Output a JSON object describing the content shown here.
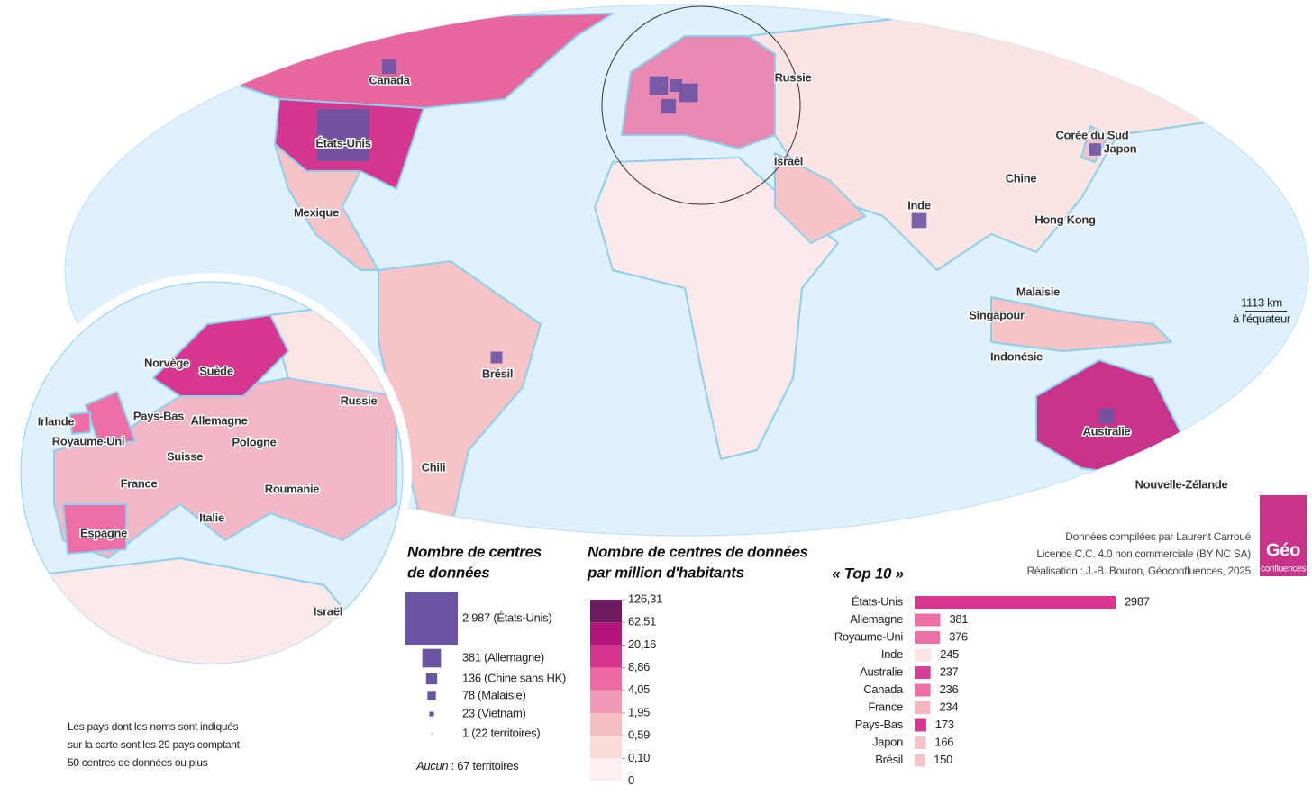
{
  "map": {
    "labels": [
      "Canada",
      "États-Unis",
      "Mexique",
      "Brésil",
      "Chili",
      "Russie",
      "Israël",
      "Inde",
      "Chine",
      "Corée du Sud",
      "Japon",
      "Hong Kong",
      "Malaisie",
      "Singapour",
      "Indonésie",
      "Australie",
      "Nouvelle-Zélande"
    ],
    "scale": {
      "distance": "1113 km",
      "caption": "à l'équateur"
    }
  },
  "inset": {
    "labels": [
      "Norvège",
      "Suède",
      "Irlande",
      "Pays-Bas",
      "Allemagne",
      "Royaume-Uni",
      "Pologne",
      "Suisse",
      "France",
      "Roumanie",
      "Italie",
      "Espagne",
      "Russie",
      "Israël"
    ]
  },
  "legend_size": {
    "title": [
      "Nombre de centres",
      "de données"
    ],
    "color": "#6a55a3",
    "items": [
      {
        "value": 2987,
        "label": "2 987 (États-Unis)"
      },
      {
        "value": 381,
        "label": "381 (Allemagne)"
      },
      {
        "value": 136,
        "label": "136 (Chine sans HK)"
      },
      {
        "value": 78,
        "label": "78 (Malaisie)"
      },
      {
        "value": 23,
        "label": "23 (Vietnam)"
      },
      {
        "value": 1,
        "label": "1 (22 territoires)"
      }
    ],
    "none_label": "Aucun",
    "none_text": " : 67 territoires"
  },
  "legend_density": {
    "title": [
      "Nombre de centres de données",
      "par million d'habitants"
    ],
    "breaks": [
      {
        "value": 126.31,
        "label": "126,31"
      },
      {
        "value": 62.51,
        "label": "62,51"
      },
      {
        "value": 20.16,
        "label": "20,16"
      },
      {
        "value": 8.86,
        "label": "8,86"
      },
      {
        "value": 4.05,
        "label": "4,05"
      },
      {
        "value": 1.95,
        "label": "1,95"
      },
      {
        "value": 0.59,
        "label": "0,59"
      },
      {
        "value": 0.1,
        "label": "0,10"
      },
      0
    ],
    "colors": [
      "#6e1a5e",
      "#b5147c",
      "#d6338e",
      "#ec6aa2",
      "#f19bb9",
      "#f6bcc3",
      "#fbdada",
      "#fdf0f0"
    ]
  },
  "top10": {
    "title": "« Top 10 »",
    "categories": [
      "États-Unis",
      "Allemagne",
      "Royaume-Uni",
      "Inde",
      "Australie",
      "Canada",
      "France",
      "Pays-Bas",
      "Japon",
      "Brésil"
    ],
    "values": [
      2987,
      381,
      376,
      245,
      237,
      236,
      234,
      173,
      166,
      150
    ],
    "colors": [
      "#d9368f",
      "#ee6fa5",
      "#ee6fa5",
      "#fbe3e3",
      "#d63f94",
      "#ee6fa5",
      "#f6b6bd",
      "#d9368f",
      "#f6c3c6",
      "#f6c3c6"
    ]
  },
  "credits": [
    "Données compilées par Laurent Carroué",
    "Licence C.C. 4.0 non commerciale (BY NC SA)",
    "Réalisation : J.-B. Bouron, Géoconfluences, 2025"
  ],
  "note": [
    "Les pays dont les noms sont indiqués",
    "sur la carte sont les 29 pays comptant",
    "50 centres de données ou plus"
  ],
  "logo": {
    "title": "Géo",
    "subtitle": "confluences"
  }
}
